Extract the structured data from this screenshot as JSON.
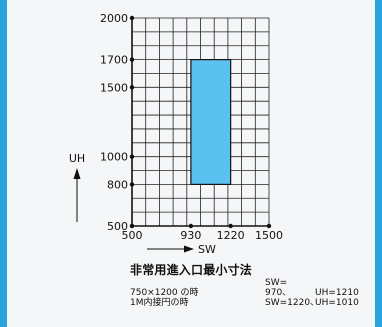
{
  "chart_data": {
    "type": "grid-plot",
    "xlabel": "SW",
    "ylabel": "UH",
    "xlim": [
      500,
      1500
    ],
    "ylim": [
      500,
      2000
    ],
    "x_ticks": [
      "500",
      "930",
      "1220",
      "1500"
    ],
    "y_ticks": [
      "500",
      "800",
      "1000",
      "1500",
      "1700",
      "2000"
    ],
    "grid": true,
    "highlight_rect": {
      "x": [
        930,
        1220
      ],
      "y": [
        800,
        1700
      ],
      "color": "#5bc2f0"
    }
  },
  "caption": {
    "title": "非常用進入口最小寸法",
    "rows": [
      {
        "label": "750×1200 の時",
        "sw": "SW=　970、",
        "uh": "UH=1210"
      },
      {
        "label": "1M内接円の時",
        "sw": "SW=1220、",
        "uh": "UH=1010"
      }
    ]
  },
  "colors": {
    "accent_border": "#2aa3dc",
    "rect_fill": "#5bc2f0",
    "grid": "#222222"
  }
}
